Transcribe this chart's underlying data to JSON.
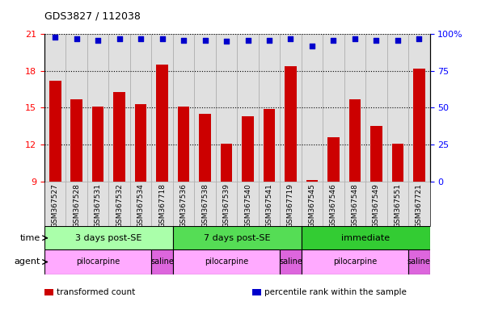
{
  "title": "GDS3827 / 112038",
  "samples": [
    "GSM367527",
    "GSM367528",
    "GSM367531",
    "GSM367532",
    "GSM367534",
    "GSM367718",
    "GSM367536",
    "GSM367538",
    "GSM367539",
    "GSM367540",
    "GSM367541",
    "GSM367719",
    "GSM367545",
    "GSM367546",
    "GSM367548",
    "GSM367549",
    "GSM367551",
    "GSM367721"
  ],
  "bar_values": [
    17.2,
    15.7,
    15.1,
    16.3,
    15.3,
    18.5,
    15.1,
    14.5,
    12.1,
    14.3,
    14.9,
    18.4,
    9.1,
    12.6,
    15.7,
    13.5,
    12.1,
    18.2
  ],
  "percentile_values": [
    98,
    97,
    96,
    97,
    97,
    97,
    96,
    96,
    95,
    96,
    96,
    97,
    92,
    96,
    97,
    96,
    96,
    97
  ],
  "bar_color": "#cc0000",
  "dot_color": "#0000cc",
  "ylim_left": [
    9,
    21
  ],
  "ylim_right": [
    0,
    100
  ],
  "yticks_left": [
    9,
    12,
    15,
    18,
    21
  ],
  "yticks_right": [
    0,
    25,
    50,
    75,
    100
  ],
  "yticklabels_right": [
    "0",
    "25",
    "50",
    "75",
    "100%"
  ],
  "time_groups": [
    {
      "label": "3 days post-SE",
      "start": 0,
      "end": 6,
      "color": "#aaffaa"
    },
    {
      "label": "7 days post-SE",
      "start": 6,
      "end": 12,
      "color": "#55dd55"
    },
    {
      "label": "immediate",
      "start": 12,
      "end": 18,
      "color": "#33cc33"
    }
  ],
  "agent_groups": [
    {
      "label": "pilocarpine",
      "start": 0,
      "end": 5,
      "color": "#ffaaff"
    },
    {
      "label": "saline",
      "start": 5,
      "end": 6,
      "color": "#dd66dd"
    },
    {
      "label": "pilocarpine",
      "start": 6,
      "end": 11,
      "color": "#ffaaff"
    },
    {
      "label": "saline",
      "start": 11,
      "end": 12,
      "color": "#dd66dd"
    },
    {
      "label": "pilocarpine",
      "start": 12,
      "end": 17,
      "color": "#ffaaff"
    },
    {
      "label": "saline",
      "start": 17,
      "end": 18,
      "color": "#dd66dd"
    }
  ],
  "legend_items": [
    {
      "color": "#cc0000",
      "label": "transformed count"
    },
    {
      "color": "#0000cc",
      "label": "percentile rank within the sample"
    }
  ],
  "col_bg_color": "#e0e0e0",
  "col_border_color": "#aaaaaa"
}
